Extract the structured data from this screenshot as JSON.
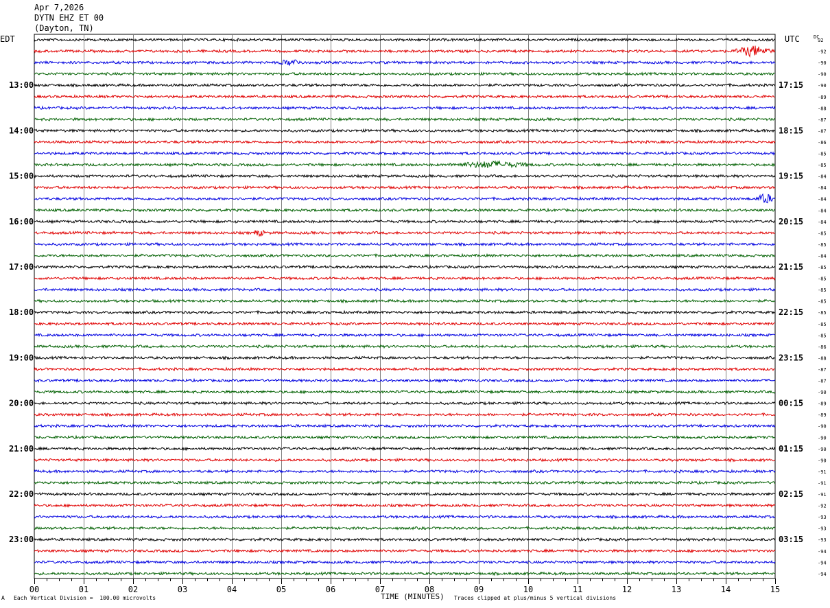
{
  "header": {
    "date": "Apr 7,2026",
    "station": "DYTN EHZ ET 00",
    "location": "(Dayton, TN)"
  },
  "left_timezone": "EDT",
  "right_timezone": "UTC",
  "dc_label": "DC",
  "footer": {
    "scale": "Each Vertical Division =  100.00 microvolts",
    "clip": "Traces clipped at plus/minus 5 vertical divisions",
    "corner": "A"
  },
  "colors": {
    "trace_cycle": [
      "#000000",
      "#e00000",
      "#0000e0",
      "#006000"
    ],
    "grid": "#808080"
  },
  "chart_data": {
    "type": "line",
    "title": "Apr 7,2026 DYTN EHZ ET 00 (Dayton, TN)",
    "xlabel": "TIME (MINUTES)",
    "xlim": [
      0,
      15
    ],
    "x_ticks": [
      "00",
      "01",
      "02",
      "03",
      "04",
      "05",
      "06",
      "07",
      "08",
      "09",
      "10",
      "11",
      "12",
      "13",
      "14",
      "15"
    ],
    "left_hour_labels": [
      "13:00",
      "14:00",
      "15:00",
      "16:00",
      "17:00",
      "18:00",
      "19:00",
      "20:00",
      "21:00",
      "22:00",
      "23:00"
    ],
    "right_hour_labels": [
      "17:15",
      "18:15",
      "19:15",
      "20:15",
      "21:15",
      "22:15",
      "23:15",
      "00:15",
      "01:15",
      "02:15",
      "03:15"
    ],
    "dc_offsets": [
      "92",
      "-92",
      "-90",
      "-90",
      "-90",
      "-89",
      "-88",
      "-87",
      "-87",
      "-86",
      "-85",
      "-85",
      "-84",
      "-84",
      "-84",
      "-84",
      "-84",
      "-85",
      "-85",
      "-84",
      "-85",
      "-85",
      "-85",
      "-85",
      "-85",
      "-85",
      "-85",
      "-86",
      "-88",
      "-87",
      "-87",
      "-90",
      "-89",
      "-89",
      "-90",
      "-90",
      "-90",
      "-90",
      "-91",
      "-91",
      "-91",
      "-92",
      "-93",
      "-93",
      "-93",
      "-94",
      "-94",
      "-94"
    ],
    "events": [
      {
        "row": 1,
        "start_min": 14.1,
        "end_min": 15.0,
        "amplitude": "large"
      },
      {
        "row": 14,
        "start_min": 14.6,
        "end_min": 15.0,
        "amplitude": "large"
      },
      {
        "row": 11,
        "start_min": 8.3,
        "end_min": 10.2,
        "amplitude": "medium"
      },
      {
        "row": 2,
        "start_min": 4.9,
        "end_min": 5.5,
        "amplitude": "medium"
      },
      {
        "row": 17,
        "start_min": 4.4,
        "end_min": 4.7,
        "amplitude": "medium"
      }
    ]
  }
}
